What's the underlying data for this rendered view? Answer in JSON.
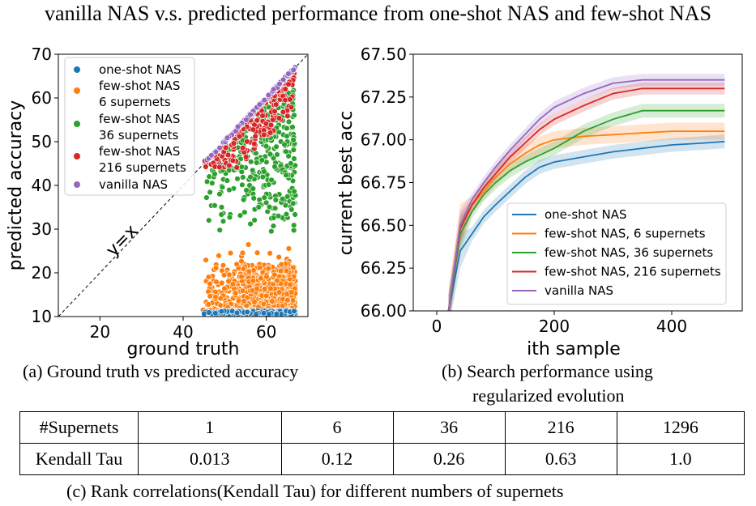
{
  "title": "vanilla NAS v.s. predicted performance from one-shot NAS and few-shot NAS",
  "captions": {
    "a": "(a)   Ground truth vs predicted accuracy",
    "b_line1": "(b)   Search performance using",
    "b_line2": "regularized evolution",
    "c": "(c)   Rank correlations(Kendall Tau) for different numbers of supernets"
  },
  "colors": {
    "one_shot": "#1f77b4",
    "few_6": "#ff7f0e",
    "few_36": "#2ca02c",
    "few_216": "#d62728",
    "vanilla": "#9467bd"
  },
  "chart_data": [
    {
      "type": "scatter",
      "title": "",
      "xlabel": "ground truth",
      "ylabel": "predicted accuracy",
      "xlim": [
        10,
        70
      ],
      "ylim": [
        10,
        70
      ],
      "xticks": [
        20,
        40,
        60
      ],
      "yticks": [
        10,
        20,
        30,
        40,
        50,
        60,
        70
      ],
      "annotation": "y=x",
      "legend_placement": "top-left",
      "grid": false,
      "series": [
        {
          "name": "one-shot NAS",
          "x_range": [
            44,
            67
          ],
          "y_range": [
            10.5,
            11.5
          ]
        },
        {
          "name": "few-shot NAS\n6 supernets",
          "x_range": [
            44,
            67
          ],
          "y_range": [
            11,
            28
          ]
        },
        {
          "name": "few-shot NAS\n36 supernets",
          "x_range": [
            44,
            67
          ],
          "y_range": [
            28,
            62
          ]
        },
        {
          "name": "few-shot NAS\n216 supernets",
          "x_range": [
            44,
            67
          ],
          "y_range": [
            44,
            67
          ]
        },
        {
          "name": "vanilla NAS",
          "x_range": [
            44,
            67
          ],
          "y_equals_x": true
        }
      ]
    },
    {
      "type": "line",
      "title": "",
      "xlabel": "ith sample",
      "ylabel": "current best acc",
      "xlim": [
        -40,
        520
      ],
      "ylim": [
        66.0,
        67.5
      ],
      "xticks": [
        0,
        200,
        400
      ],
      "yticks": [
        66.0,
        66.25,
        66.5,
        66.75,
        67.0,
        67.25,
        67.5
      ],
      "ytick_labels": [
        "66.00",
        "66.25",
        "66.50",
        "66.75",
        "67.00",
        "67.25",
        "67.50"
      ],
      "legend_placement": "lower-right",
      "grid": false,
      "x": [
        20,
        40,
        60,
        80,
        100,
        125,
        150,
        175,
        200,
        250,
        300,
        350,
        400,
        450,
        490
      ],
      "series": [
        {
          "name": "one-shot NAS",
          "values": [
            66.0,
            66.35,
            66.45,
            66.55,
            66.62,
            66.7,
            66.78,
            66.84,
            66.87,
            66.9,
            66.93,
            66.95,
            66.97,
            66.98,
            66.99
          ]
        },
        {
          "name": "few-shot NAS, 6 supernets",
          "values": [
            66.0,
            66.5,
            66.62,
            66.7,
            66.78,
            66.86,
            66.92,
            66.97,
            67.0,
            67.02,
            67.03,
            67.04,
            67.05,
            67.05,
            67.05
          ]
        },
        {
          "name": "few-shot NAS, 36 supernets",
          "values": [
            66.0,
            66.45,
            66.58,
            66.68,
            66.75,
            66.82,
            66.87,
            66.91,
            66.95,
            67.05,
            67.12,
            67.17,
            67.17,
            67.17,
            67.17
          ]
        },
        {
          "name": "few-shot NAS, 216 supernets",
          "values": [
            66.0,
            66.48,
            66.62,
            66.72,
            66.8,
            66.9,
            66.98,
            67.06,
            67.12,
            67.2,
            67.27,
            67.3,
            67.3,
            67.3,
            67.3
          ]
        },
        {
          "name": "vanilla NAS",
          "values": [
            66.0,
            66.5,
            66.65,
            66.75,
            66.84,
            66.94,
            67.03,
            67.12,
            67.19,
            67.27,
            67.33,
            67.35,
            67.35,
            67.35,
            67.35
          ]
        }
      ],
      "band_halfwidth": [
        0.04,
        0.05,
        0.04,
        0.035,
        0.035
      ]
    },
    {
      "type": "table",
      "row_headers": [
        "#Supernets",
        "Kendall Tau"
      ],
      "supernets": [
        "1",
        "6",
        "36",
        "216",
        "1296"
      ],
      "kendall_tau": [
        "0.013",
        "0.12",
        "0.26",
        "0.63",
        "1.0"
      ]
    }
  ]
}
